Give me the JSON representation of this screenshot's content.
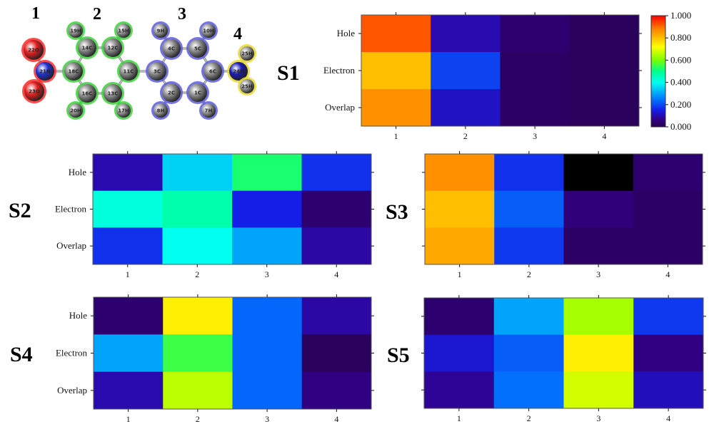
{
  "molecule": {
    "fragment_numbers": [
      "1",
      "2",
      "3",
      "4"
    ],
    "atoms": [
      {
        "label": "22O",
        "fragment": 1,
        "color": "#e02020"
      },
      {
        "label": "21N",
        "fragment": 1,
        "color": "#2030d0"
      },
      {
        "label": "23O",
        "fragment": 1,
        "color": "#e02020"
      },
      {
        "label": "19H",
        "fragment": 2,
        "color": "#9a9a9a"
      },
      {
        "label": "14C",
        "fragment": 2,
        "color": "#8a8a8a"
      },
      {
        "label": "12C",
        "fragment": 2,
        "color": "#8a8a8a"
      },
      {
        "label": "15H",
        "fragment": 2,
        "color": "#9a9a9a"
      },
      {
        "label": "18C",
        "fragment": 2,
        "color": "#8a8a8a"
      },
      {
        "label": "11C",
        "fragment": 2,
        "color": "#8a8a8a"
      },
      {
        "label": "16C",
        "fragment": 2,
        "color": "#8a8a8a"
      },
      {
        "label": "13C",
        "fragment": 2,
        "color": "#8a8a8a"
      },
      {
        "label": "20H",
        "fragment": 2,
        "color": "#9a9a9a"
      },
      {
        "label": "17H",
        "fragment": 2,
        "color": "#9a9a9a"
      },
      {
        "label": "9H",
        "fragment": 3,
        "color": "#9a9a9a"
      },
      {
        "label": "10H",
        "fragment": 3,
        "color": "#9a9a9a"
      },
      {
        "label": "4C",
        "fragment": 3,
        "color": "#8a8a8a"
      },
      {
        "label": "5C",
        "fragment": 3,
        "color": "#8a8a8a"
      },
      {
        "label": "3C",
        "fragment": 3,
        "color": "#8a8a8a"
      },
      {
        "label": "6C",
        "fragment": 3,
        "color": "#8a8a8a"
      },
      {
        "label": "2C",
        "fragment": 3,
        "color": "#8a8a8a"
      },
      {
        "label": "1C",
        "fragment": 3,
        "color": "#8a8a8a"
      },
      {
        "label": "8H",
        "fragment": 3,
        "color": "#9a9a9a"
      },
      {
        "label": "7H",
        "fragment": 3,
        "color": "#9a9a9a"
      },
      {
        "label": "24N",
        "fragment": 4,
        "color": "#1a1ab0"
      },
      {
        "label": "25H",
        "fragment": 4,
        "color": "#9a9a9a"
      },
      {
        "label": "25H",
        "fragment": 4,
        "color": "#9a9a9a"
      }
    ],
    "fragment_halo_colors": {
      "1": "#ff2a2a",
      "2": "#3ad23a",
      "3": "#5a5adf",
      "4": "#e8d830"
    }
  },
  "colorbar": {
    "ticks": [
      "0.000",
      "0.200",
      "0.400",
      "0.600",
      "0.800",
      "1.000"
    ],
    "tick_values": [
      0,
      0.2,
      0.4,
      0.6,
      0.8,
      1.0
    ],
    "range": [
      0,
      1
    ]
  },
  "chart_data": [
    {
      "type": "heatmap",
      "title": "S1",
      "rows": [
        "Hole",
        "Electron",
        "Overlap"
      ],
      "columns": [
        "1",
        "2",
        "3",
        "4"
      ],
      "values": [
        [
          0.92,
          0.1,
          0.04,
          0.02
        ],
        [
          0.8,
          0.19,
          0.03,
          0.02
        ],
        [
          0.86,
          0.12,
          0.03,
          0.02
        ]
      ]
    },
    {
      "type": "heatmap",
      "title": "S2",
      "rows": [
        "Hole",
        "Electron",
        "Overlap"
      ],
      "columns": [
        "1",
        "2",
        "3",
        "4"
      ],
      "values": [
        [
          0.1,
          0.35,
          0.52,
          0.17
        ],
        [
          0.42,
          0.47,
          0.15,
          0.04
        ],
        [
          0.17,
          0.4,
          0.3,
          0.09
        ]
      ]
    },
    {
      "type": "heatmap",
      "title": "S3",
      "rows": [
        "Hole",
        "Electron",
        "Overlap"
      ],
      "columns": [
        "1",
        "2",
        "3",
        "4"
      ],
      "values": [
        [
          0.86,
          0.17,
          0.0,
          0.04
        ],
        [
          0.8,
          0.22,
          0.05,
          0.03
        ],
        [
          0.83,
          0.18,
          0.03,
          0.03
        ]
      ]
    },
    {
      "type": "heatmap",
      "title": "S4",
      "rows": [
        "Hole",
        "Electron",
        "Overlap"
      ],
      "columns": [
        "1",
        "2",
        "3",
        "4"
      ],
      "values": [
        [
          0.04,
          0.74,
          0.23,
          0.09
        ],
        [
          0.3,
          0.55,
          0.23,
          0.02
        ],
        [
          0.1,
          0.66,
          0.23,
          0.06
        ]
      ]
    },
    {
      "type": "heatmap",
      "title": "S5",
      "rows": [
        "Hole",
        "Electron",
        "Overlap"
      ],
      "columns": [
        "1",
        "2",
        "3",
        "4"
      ],
      "values": [
        [
          0.04,
          0.3,
          0.64,
          0.18
        ],
        [
          0.13,
          0.22,
          0.74,
          0.06
        ],
        [
          0.08,
          0.24,
          0.68,
          0.11
        ]
      ]
    }
  ]
}
